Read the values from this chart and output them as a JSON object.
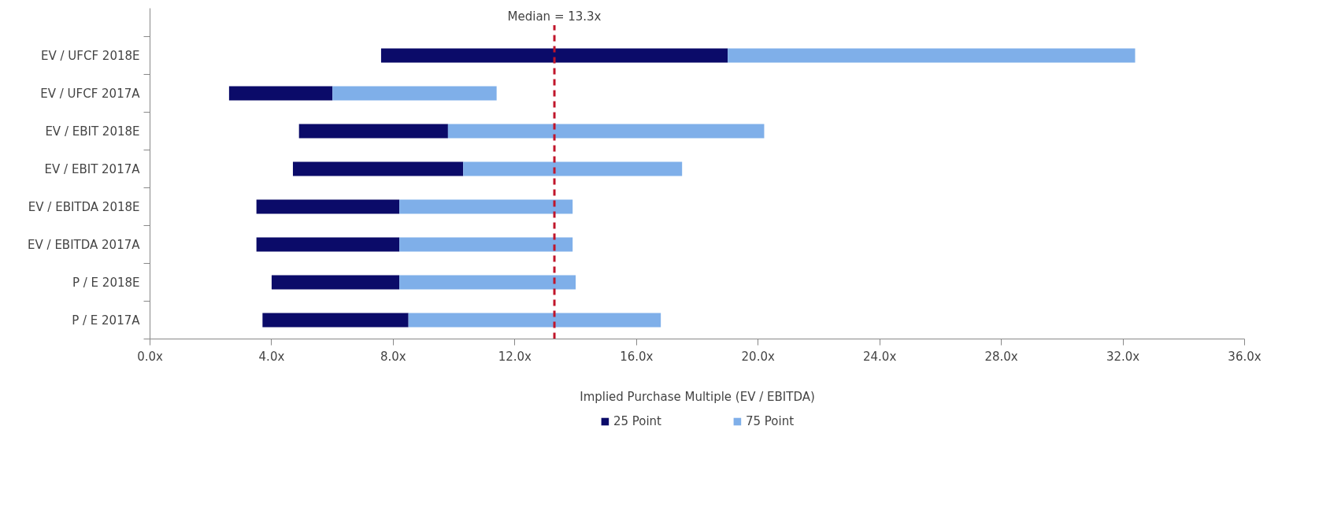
{
  "chart_data": {
    "type": "bar",
    "orientation": "horizontal",
    "categories": [
      "EV / UFCF 2018E",
      "EV / UFCF 2017A",
      "EV / EBIT 2018E",
      "EV / EBIT 2017A",
      "EV / EBITDA 2018E",
      "EV / EBITDA 2017A",
      "P / E 2018E",
      "P / E 2017A"
    ],
    "series": [
      {
        "name": "25 Point",
        "color": "#0b0b69",
        "base": [
          7.6,
          2.6,
          4.9,
          4.7,
          3.5,
          3.5,
          4.0,
          3.7
        ],
        "values": [
          11.4,
          3.4,
          4.9,
          5.6,
          4.7,
          4.7,
          4.2,
          4.8
        ]
      },
      {
        "name": "75 Point",
        "color": "#7fafe9",
        "base": [
          19.0,
          6.0,
          9.8,
          10.3,
          8.2,
          8.2,
          8.2,
          8.5
        ],
        "values": [
          13.4,
          5.4,
          10.4,
          7.2,
          5.7,
          5.7,
          5.8,
          8.3
        ]
      }
    ],
    "xlabel": "Implied Purchase Multiple (EV / EBITDA)",
    "xlim": [
      0,
      36
    ],
    "xticks": [
      {
        "value": 0,
        "label": "0.0x"
      },
      {
        "value": 4,
        "label": "4.0x"
      },
      {
        "value": 8,
        "label": "8.0x"
      },
      {
        "value": 12,
        "label": "12.0x"
      },
      {
        "value": 16,
        "label": "16.0x"
      },
      {
        "value": 20,
        "label": "20.0x"
      },
      {
        "value": 24,
        "label": "24.0x"
      },
      {
        "value": 28,
        "label": "28.0x"
      },
      {
        "value": 32,
        "label": "32.0x"
      },
      {
        "value": 36,
        "label": "36.0x"
      }
    ],
    "ref_lines": [
      {
        "axis": "x",
        "value": 13.3,
        "label": "Median = 13.3x",
        "color": "#c0152a",
        "line_style": "dashed"
      }
    ],
    "grid": false,
    "legend": "bottom"
  }
}
